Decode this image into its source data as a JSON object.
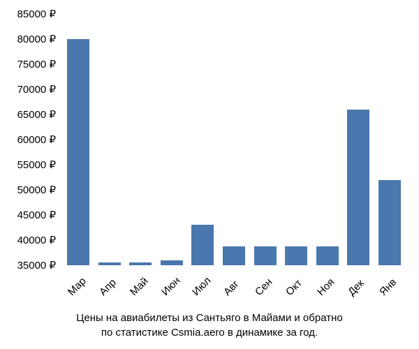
{
  "chart": {
    "type": "bar",
    "categories": [
      "Мар",
      "Апр",
      "Май",
      "Июн",
      "Июл",
      "Авг",
      "Сен",
      "Окт",
      "Ноя",
      "Дек",
      "Янв"
    ],
    "values": [
      80000,
      35500,
      35500,
      36000,
      43000,
      38700,
      38700,
      38700,
      38700,
      66000,
      52000
    ],
    "bar_color": "#4a77ad",
    "background_color": "#ffffff",
    "ylim": [
      35000,
      85000
    ],
    "ytick_step": 5000,
    "yticks": [
      35000,
      40000,
      45000,
      50000,
      55000,
      60000,
      65000,
      70000,
      75000,
      80000,
      85000
    ],
    "ytick_labels": [
      "35000 ₽",
      "40000 ₽",
      "45000 ₽",
      "50000 ₽",
      "55000 ₽",
      "60000 ₽",
      "65000 ₽",
      "70000 ₽",
      "75000 ₽",
      "80000 ₽",
      "85000 ₽"
    ],
    "label_fontsize": 15,
    "bar_width_ratio": 0.72,
    "caption_line1": "Цены на авиабилеты из Сантьяго в Майами и обратно",
    "caption_line2": "по статистике Csmia.aero в динамике за год.",
    "text_color": "#000000"
  }
}
